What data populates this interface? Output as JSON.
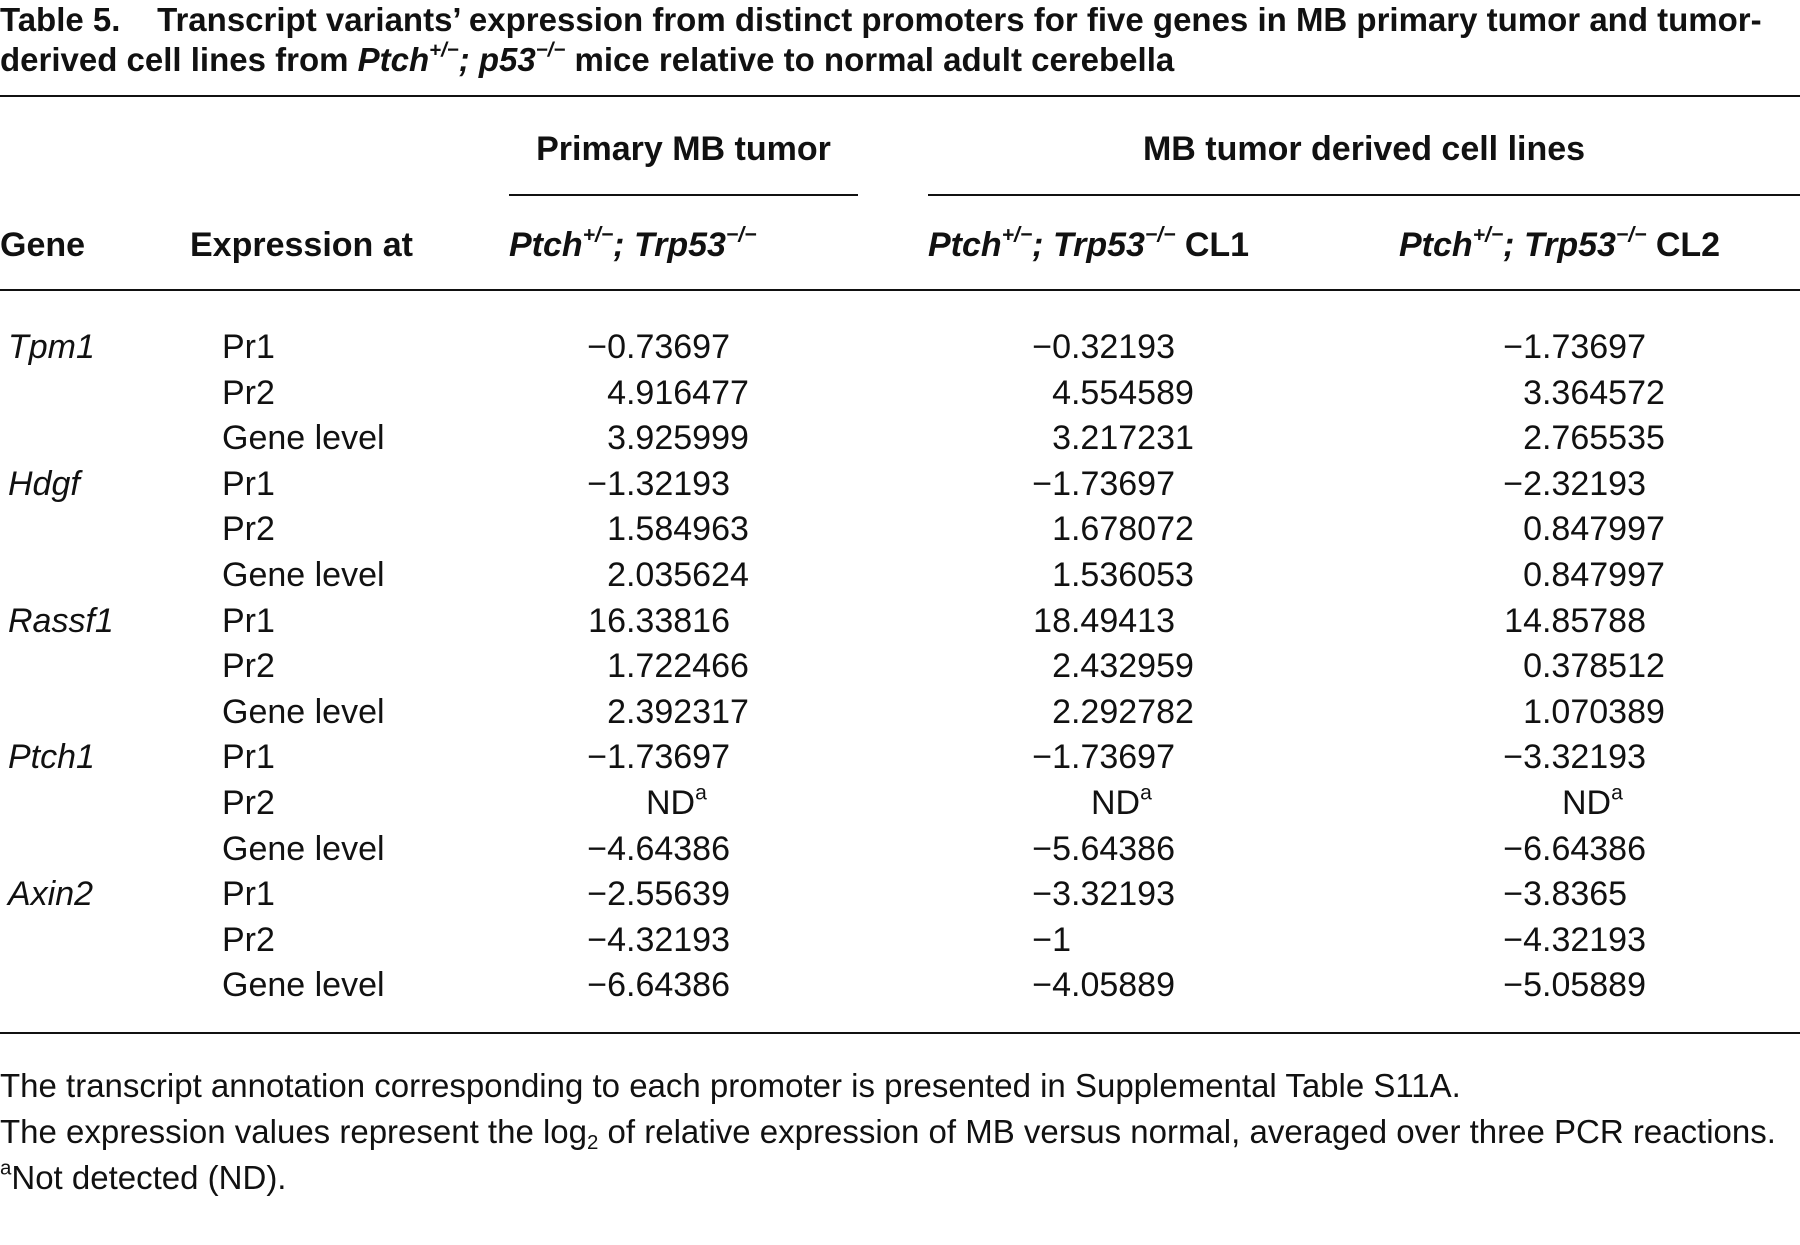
{
  "title": {
    "label": "Table 5.",
    "text": "Transcript variants’ expression from distinct promoters for five genes in MB primary tumor and tumor-derived cell lines from",
    "genotype": [
      "Ptch",
      "+/−",
      "; p53",
      "−/−"
    ],
    "text_end": "mice relative to normal adult cerebella"
  },
  "table": {
    "headers": {
      "gene": "Gene",
      "expression": "Expression at",
      "groups": [
        "Primary MB tumor",
        "MB tumor derived cell lines"
      ],
      "columns": [
        {
          "genotype": [
            "Ptch",
            "+/−",
            "; Trp53",
            "−/−"
          ]
        },
        {
          "genotype": [
            "Ptch",
            "+/−",
            "; Trp53",
            "−/−"
          ],
          "suffix": "CL1"
        },
        {
          "genotype": [
            "Ptch",
            "+/−",
            "; Trp53",
            "−/−"
          ],
          "suffix": "CL2"
        }
      ]
    },
    "groups": [
      {
        "gene": "Tpm1",
        "rows": [
          [
            "Pr1",
            "−0.73697",
            "−0.32193",
            "−1.73697"
          ],
          [
            "Pr2",
            "4.916477",
            "4.554589",
            "3.364572"
          ],
          [
            "Gene level",
            "3.925999",
            "3.217231",
            "2.765535"
          ]
        ]
      },
      {
        "gene": "Hdgf",
        "rows": [
          [
            "Pr1",
            "−1.32193",
            "−1.73697",
            "−2.32193"
          ],
          [
            "Pr2",
            "1.584963",
            "1.678072",
            "0.847997"
          ],
          [
            "Gene level",
            "2.035624",
            "1.536053",
            "0.847997"
          ]
        ]
      },
      {
        "gene": "Rassf1",
        "rows": [
          [
            "Pr1",
            "16.33816",
            "18.49413",
            "14.85788"
          ],
          [
            "Pr2",
            "1.722466",
            "2.432959",
            "0.378512"
          ],
          [
            "Gene level",
            "2.392317",
            "2.292782",
            "1.070389"
          ]
        ]
      },
      {
        "gene": "Ptch1",
        "rows": [
          [
            "Pr1",
            "−1.73697",
            "−1.73697",
            "−3.32193"
          ],
          [
            "Pr2",
            {
              "text": "ND",
              "note": "a"
            },
            {
              "text": "ND",
              "note": "a"
            },
            {
              "text": "ND",
              "note": "a"
            }
          ],
          [
            "Gene level",
            "−4.64386",
            "−5.64386",
            "−6.64386"
          ]
        ]
      },
      {
        "gene": "Axin2",
        "rows": [
          [
            "Pr1",
            "−2.55639",
            "−3.32193",
            "−3.8365"
          ],
          [
            "Pr2",
            "−4.32193",
            "−1",
            "−4.32193"
          ],
          [
            "Gene level",
            "−6.64386",
            "−4.05889",
            "−5.05889"
          ]
        ]
      }
    ]
  },
  "notes": {
    "line_1": "The transcript annotation corresponding to each promoter is presented in Supplemental Table S11A.",
    "line_2": [
      "The expression values represent the log",
      "2",
      " of relative expression of MB versus normal, averaged over three PCR reactions."
    ],
    "footnote": {
      "mark": "a",
      "text": "Not detected (ND)."
    }
  }
}
